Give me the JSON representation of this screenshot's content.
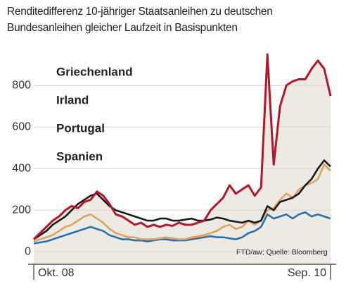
{
  "chart_data": {
    "type": "line",
    "title": [
      "Renditedifferenz 10-jähriger Staatsanleihen zu deutschen",
      "Bundesanleihen gleicher Laufzeit in Basispunkten"
    ],
    "source": "FTD/aw; Quelle: Bloomberg",
    "categories": [
      "Okt. 08",
      null,
      null,
      null,
      null,
      null,
      null,
      null,
      null,
      null,
      null,
      null,
      null,
      null,
      null,
      null,
      null,
      null,
      null,
      null,
      null,
      null,
      null,
      null,
      null,
      null,
      null,
      null,
      null,
      null,
      null,
      null,
      null,
      null,
      null,
      null,
      null,
      null,
      null,
      null,
      null,
      null,
      null,
      null,
      null,
      null,
      null,
      "Sep. 10"
    ],
    "ylim": [
      -60,
      940
    ],
    "yticks": [
      0,
      200,
      400,
      600,
      800
    ],
    "grid": true,
    "area_fill": "#ede9e3",
    "series": [
      {
        "name": "Griechenland",
        "color": "#b3162b",
        "values": [
          60,
          90,
          120,
          150,
          170,
          200,
          220,
          210,
          240,
          250,
          290,
          270,
          230,
          180,
          170,
          150,
          130,
          140,
          120,
          130,
          120,
          130,
          125,
          140,
          130,
          130,
          140,
          150,
          200,
          230,
          260,
          320,
          280,
          300,
          320,
          270,
          310,
          950,
          420,
          700,
          800,
          820,
          830,
          830,
          880,
          920,
          880,
          750
        ]
      },
      {
        "name": "Irland",
        "color": "#1a1a1a",
        "values": [
          60,
          80,
          100,
          130,
          150,
          170,
          200,
          230,
          250,
          270,
          280,
          250,
          220,
          200,
          190,
          180,
          170,
          160,
          150,
          150,
          160,
          160,
          150,
          150,
          155,
          160,
          150,
          150,
          155,
          165,
          160,
          150,
          145,
          140,
          150,
          140,
          150,
          220,
          200,
          240,
          250,
          260,
          280,
          320,
          350,
          400,
          440,
          410
        ]
      },
      {
        "name": "Portugal",
        "color": "#e2a05e",
        "values": [
          50,
          60,
          70,
          80,
          100,
          120,
          130,
          150,
          170,
          180,
          160,
          140,
          110,
          90,
          80,
          70,
          70,
          60,
          60,
          60,
          65,
          70,
          65,
          60,
          60,
          70,
          75,
          80,
          90,
          100,
          120,
          130,
          110,
          120,
          150,
          130,
          150,
          200,
          210,
          250,
          280,
          260,
          300,
          320,
          330,
          350,
          420,
          390
        ]
      },
      {
        "name": "Spanien",
        "color": "#2471b0",
        "values": [
          40,
          45,
          50,
          60,
          70,
          80,
          90,
          100,
          110,
          120,
          110,
          100,
          80,
          70,
          60,
          60,
          55,
          55,
          50,
          55,
          60,
          60,
          55,
          55,
          55,
          60,
          65,
          70,
          75,
          70,
          70,
          65,
          60,
          70,
          90,
          100,
          120,
          180,
          160,
          170,
          180,
          160,
          180,
          190,
          170,
          180,
          170,
          160
        ]
      }
    ]
  }
}
